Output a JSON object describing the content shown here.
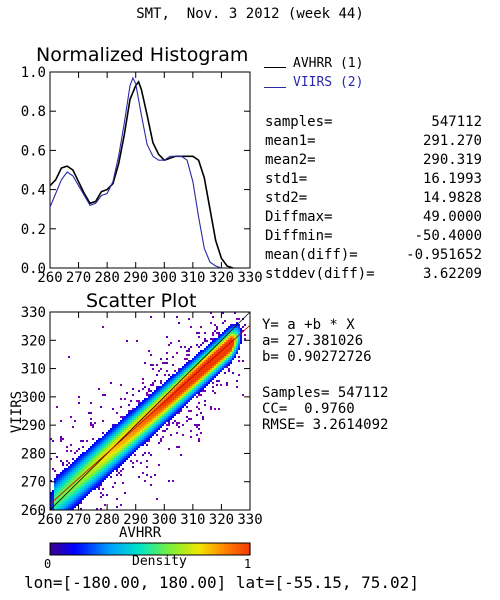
{
  "figure_title": "SMT,  Nov. 3 2012 (week 44)",
  "legend": {
    "avhrr_label": "AVHRR (1)",
    "viirs_label": "VIIRS (2)",
    "avhrr_color": "#000000",
    "viirs_color": "#2a2aa8"
  },
  "stats": [
    {
      "label": "samples=",
      "value": "547112"
    },
    {
      "label": "mean1=",
      "value": "291.270"
    },
    {
      "label": "mean2=",
      "value": "290.319"
    },
    {
      "label": "std1=",
      "value": "16.1993"
    },
    {
      "label": "std2=",
      "value": "14.9828"
    },
    {
      "label": "Diffmax=",
      "value": "49.0000"
    },
    {
      "label": "Diffmin=",
      "value": "-50.4000"
    },
    {
      "label": "mean(diff)=",
      "value": "-0.951652"
    },
    {
      "label": "stddev(diff)=",
      "value": "3.62209"
    }
  ],
  "regression": {
    "equation": "Y= a +b * X",
    "a_text": "a= 27.381026",
    "b_text": "b= 0.90272726",
    "samples_text": "Samples= 547112",
    "cc_text": "CC=  0.9760",
    "rmse_text": "RMSE= 3.2614092"
  },
  "colorbar": {
    "min_label": "0",
    "max_label": "1",
    "title": "Density"
  },
  "footer": "lon=[-180.00, 180.00] lat=[-55.15, 75.02]",
  "chart_data": [
    {
      "type": "line",
      "title": "Normalized Histogram",
      "xlabel": "",
      "ylabel": "",
      "xlim": [
        260,
        330
      ],
      "ylim": [
        0,
        1.0
      ],
      "xticks": [
        260,
        270,
        280,
        290,
        300,
        310,
        320,
        330
      ],
      "yticks": [
        0.0,
        0.2,
        0.4,
        0.6,
        0.8,
        1.0
      ],
      "ytick_labels": [
        "0.0",
        "0.2",
        "0.4",
        "0.6",
        "0.8",
        "1.0"
      ],
      "series": [
        {
          "name": "AVHRR (1)",
          "color": "#000000",
          "x": [
            260,
            262,
            264,
            266,
            268,
            270,
            272,
            274,
            276,
            278,
            280,
            282,
            284,
            286,
            288,
            290,
            291,
            292,
            294,
            296,
            298,
            300,
            302,
            304,
            306,
            308,
            310,
            312,
            314,
            316,
            318,
            320,
            322,
            324
          ],
          "y": [
            0.42,
            0.45,
            0.51,
            0.52,
            0.5,
            0.44,
            0.38,
            0.33,
            0.34,
            0.39,
            0.4,
            0.43,
            0.53,
            0.68,
            0.86,
            0.93,
            0.95,
            0.91,
            0.78,
            0.64,
            0.58,
            0.55,
            0.56,
            0.57,
            0.57,
            0.57,
            0.57,
            0.55,
            0.46,
            0.3,
            0.14,
            0.05,
            0.01,
            0.0
          ]
        },
        {
          "name": "VIIRS (2)",
          "color": "#2a2aa8",
          "x": [
            260,
            262,
            264,
            266,
            268,
            270,
            272,
            274,
            276,
            278,
            280,
            282,
            284,
            286,
            288,
            289,
            290,
            292,
            294,
            296,
            298,
            300,
            302,
            304,
            306,
            308,
            310,
            312,
            314,
            316,
            318,
            320
          ],
          "y": [
            0.31,
            0.38,
            0.45,
            0.49,
            0.47,
            0.42,
            0.37,
            0.32,
            0.33,
            0.37,
            0.38,
            0.44,
            0.57,
            0.74,
            0.93,
            0.97,
            0.94,
            0.78,
            0.63,
            0.57,
            0.55,
            0.55,
            0.57,
            0.57,
            0.57,
            0.55,
            0.44,
            0.26,
            0.1,
            0.03,
            0.01,
            0.0
          ]
        }
      ]
    },
    {
      "type": "scatter",
      "title": "Scatter Plot",
      "xlabel": "AVHRR",
      "ylabel": "VIIRS",
      "xlim": [
        260,
        330
      ],
      "ylim": [
        260,
        330
      ],
      "xticks": [
        260,
        270,
        280,
        290,
        300,
        310,
        320,
        330
      ],
      "yticks": [
        260,
        270,
        280,
        290,
        300,
        310,
        320,
        330
      ],
      "density_range": [
        0,
        1
      ],
      "regression": {
        "a": 27.381026,
        "b": 0.90272726
      }
    }
  ]
}
